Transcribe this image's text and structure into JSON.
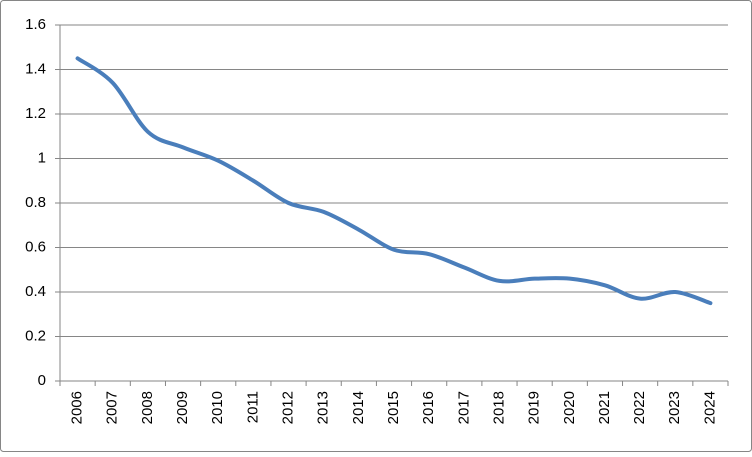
{
  "chart_data": {
    "type": "line",
    "categories": [
      "2006",
      "2007",
      "2008",
      "2009",
      "2010",
      "2011",
      "2012",
      "2013",
      "2014",
      "2015",
      "2016",
      "2017",
      "2018",
      "2019",
      "2020",
      "2021",
      "2022",
      "2023",
      "2024"
    ],
    "values": [
      1.45,
      1.34,
      1.12,
      1.05,
      0.99,
      0.9,
      0.8,
      0.76,
      0.68,
      0.59,
      0.57,
      0.51,
      0.45,
      0.46,
      0.46,
      0.43,
      0.37,
      0.4,
      0.35
    ],
    "color": "#4a7ebb",
    "ylim": [
      0,
      1.6
    ],
    "yticks": [
      0,
      0.2,
      0.4,
      0.6,
      0.8,
      1,
      1.2,
      1.4,
      1.6
    ],
    "grid": true,
    "smooth": true
  }
}
